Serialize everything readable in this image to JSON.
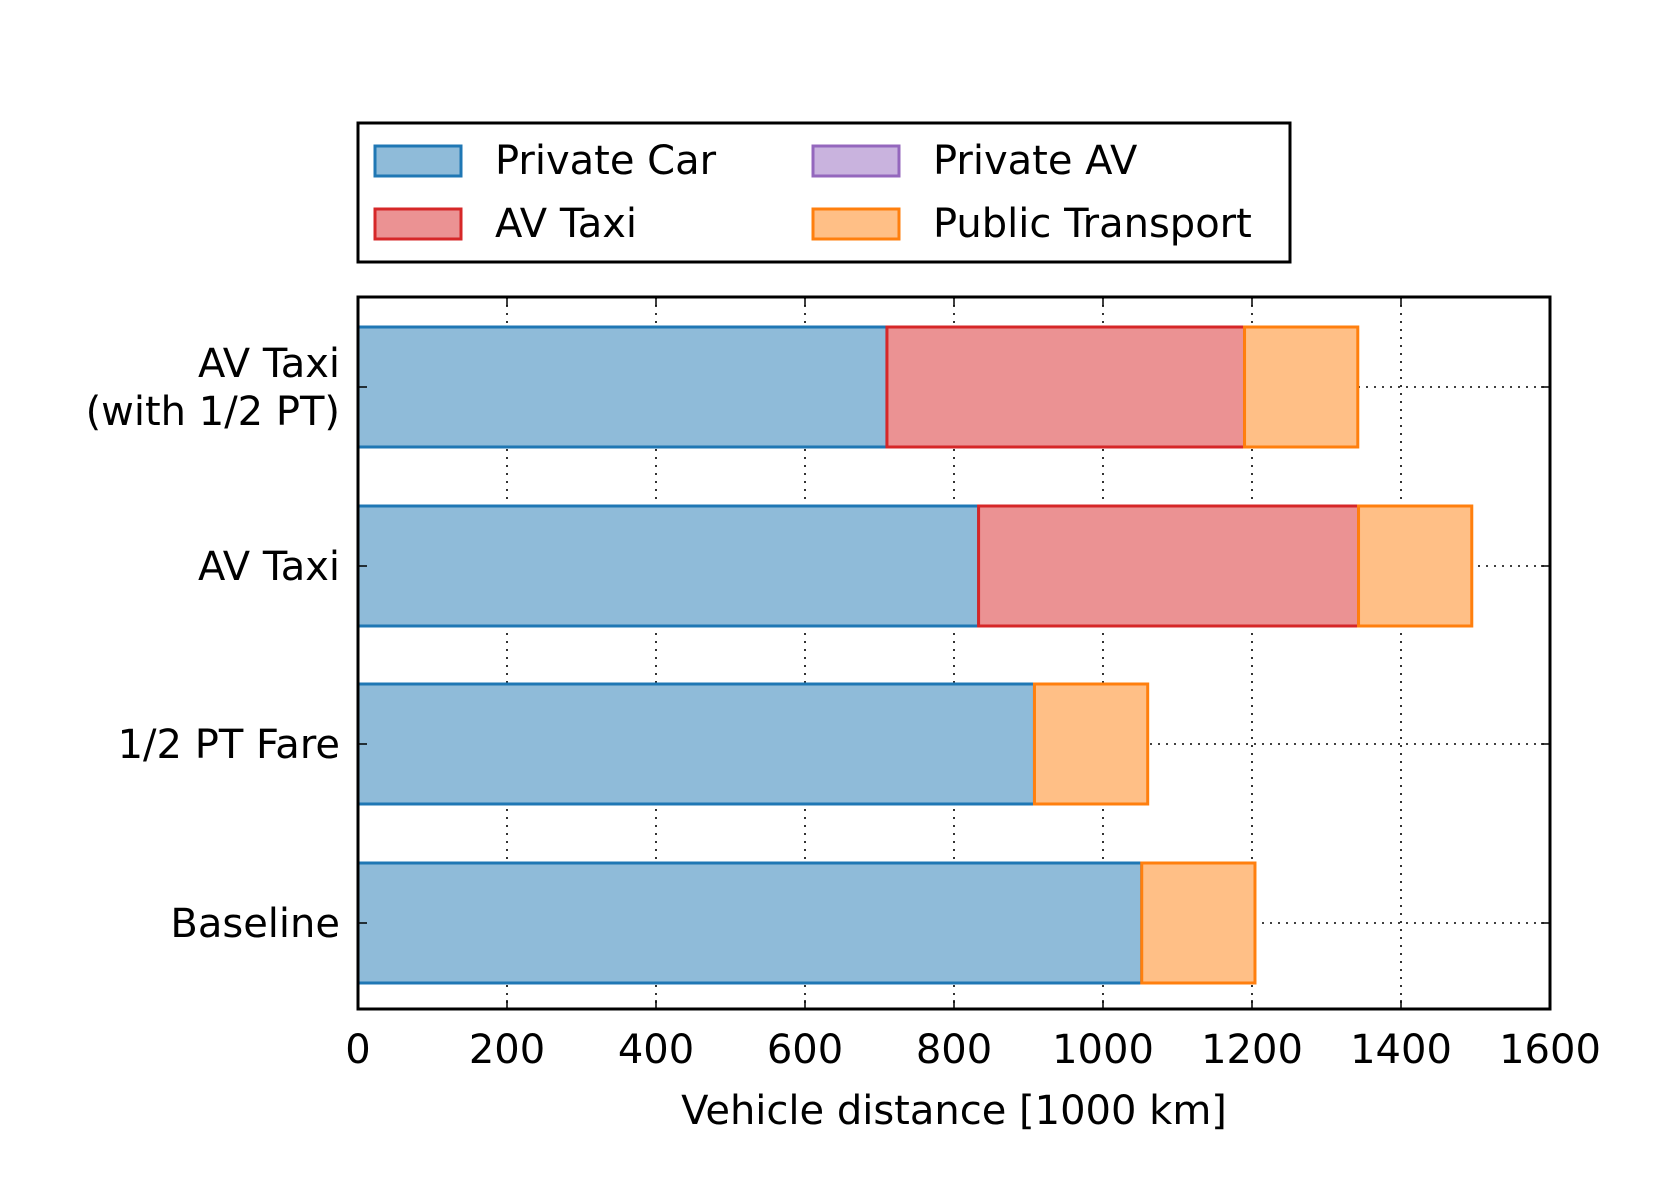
{
  "chart_data": {
    "type": "bar",
    "orientation": "horizontal",
    "stacked": true,
    "categories": [
      "AV Taxi\n(with 1/2 PT)",
      "AV Taxi",
      "1/2 PT Fare",
      "Baseline"
    ],
    "series": [
      {
        "name": "Private Car",
        "values": [
          710,
          833,
          908,
          1052
        ],
        "fill": "#8fbbd9",
        "stroke": "#1f77b4"
      },
      {
        "name": "AV Taxi",
        "values": [
          480,
          510,
          0,
          0
        ],
        "fill": "#eb9293",
        "stroke": "#d62728"
      },
      {
        "name": "Private AV",
        "values": [
          0,
          0,
          0,
          0
        ],
        "fill": "#c9b3de",
        "stroke": "#9467bd"
      },
      {
        "name": "Public Transport",
        "values": [
          152,
          152,
          152,
          152
        ],
        "fill": "#ffbf86",
        "stroke": "#ff7f0e"
      }
    ],
    "title": "",
    "xlabel": "Vehicle distance [1000 km]",
    "ylabel": "",
    "xlim": [
      0,
      1600
    ],
    "xticks": [
      0,
      200,
      400,
      600,
      800,
      1000,
      1200,
      1400,
      1600
    ],
    "grid": true,
    "legend_position": "top, above plot, 2 columns"
  }
}
